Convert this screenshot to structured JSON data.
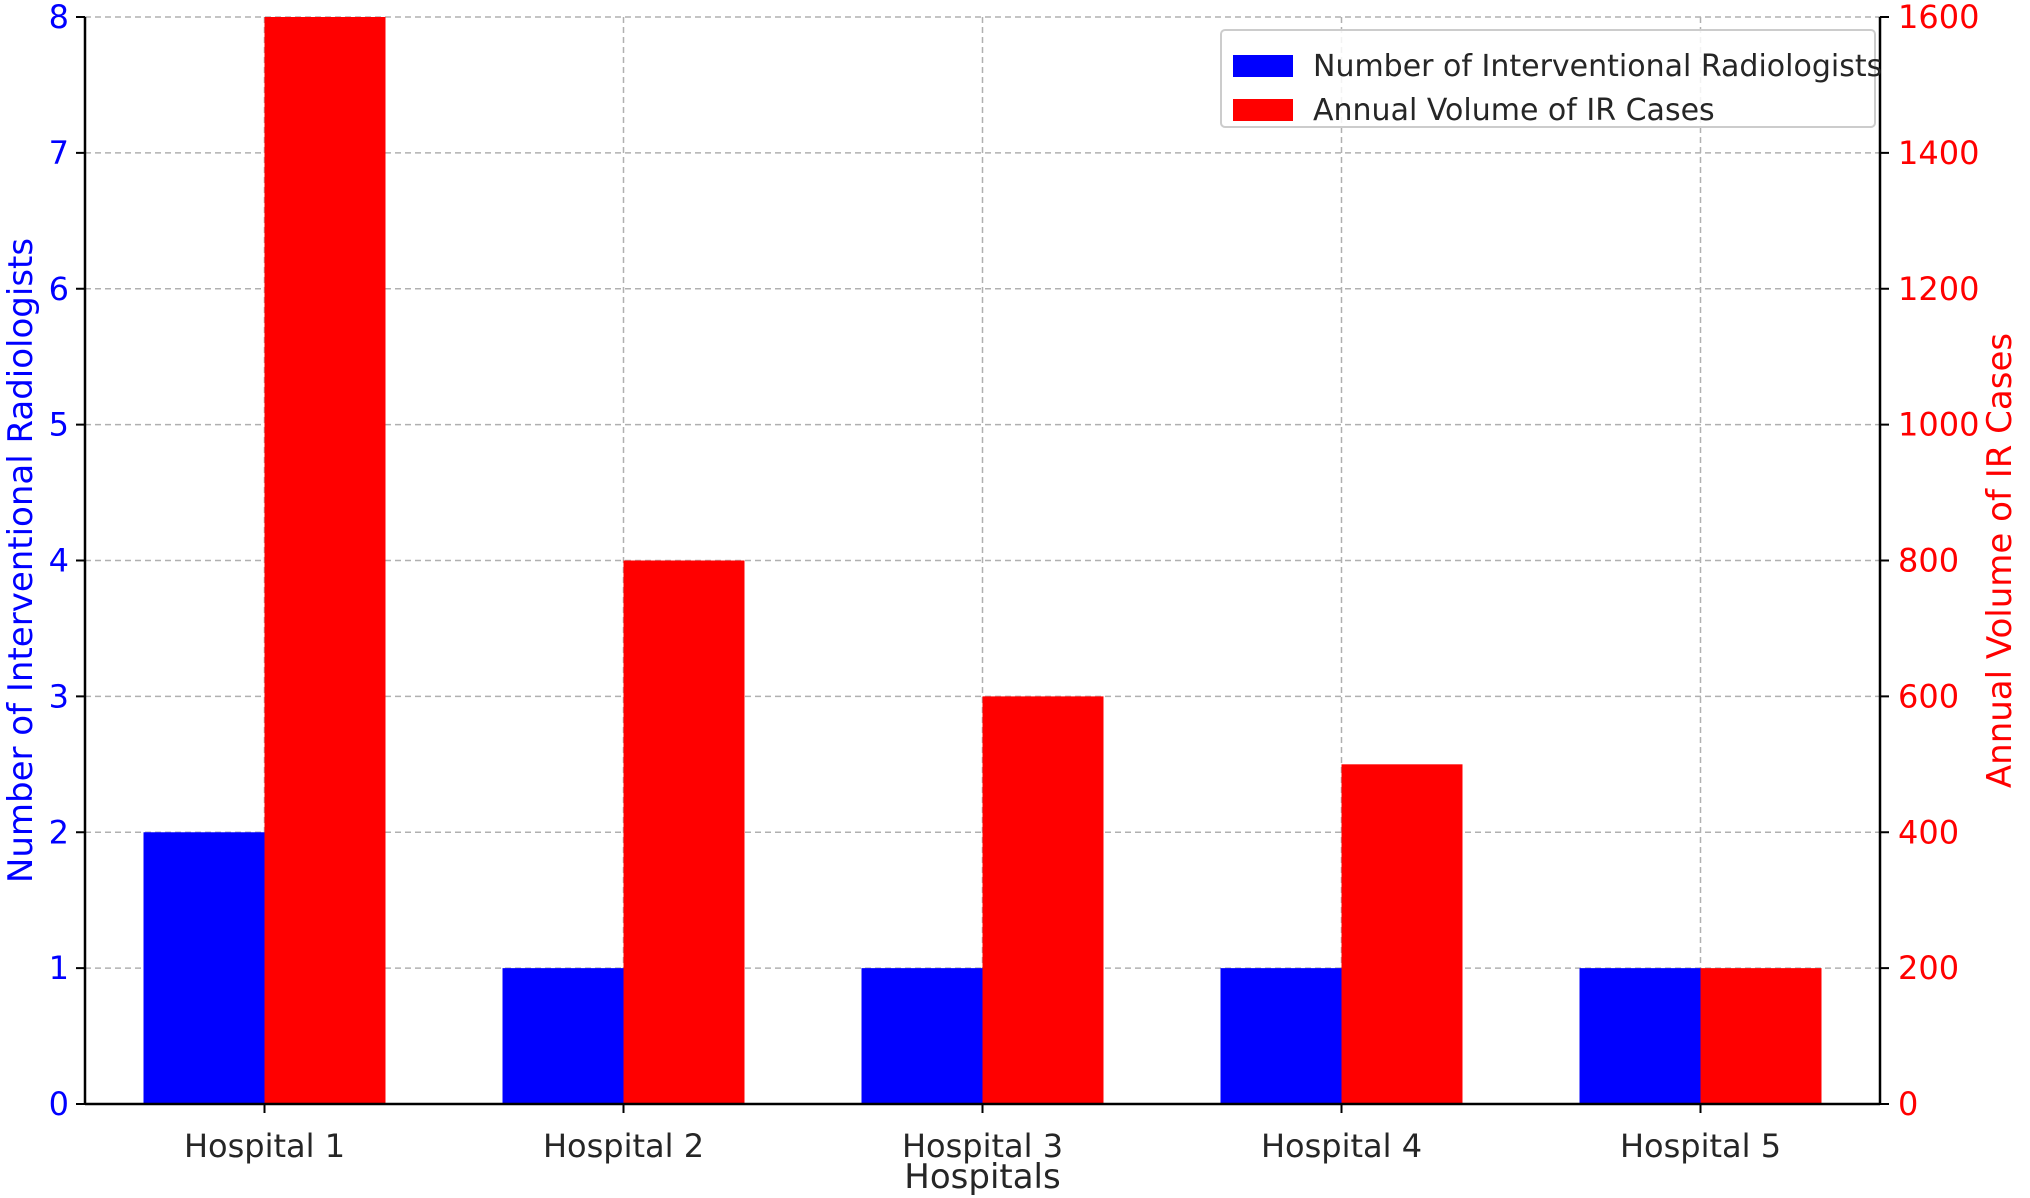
{
  "chart_data": {
    "type": "bar",
    "categories": [
      "Hospital 1",
      "Hospital 2",
      "Hospital 3",
      "Hospital 4",
      "Hospital 5"
    ],
    "xlabel": "Hospitals",
    "grid": true,
    "legend_position": "top-right",
    "series": [
      {
        "name": "Number of Interventional Radiologists",
        "axis": "left",
        "color": "#0000ff",
        "values": [
          2,
          1,
          1,
          1,
          1
        ]
      },
      {
        "name": "Annual Volume of IR Cases",
        "axis": "right",
        "color": "#ff0000",
        "values": [
          1600,
          800,
          600,
          500,
          200
        ]
      }
    ],
    "y_left": {
      "label": "Number of Interventional Radiologists",
      "color": "#0000ff",
      "ylim": [
        0,
        8
      ],
      "ticks": [
        "0",
        "1",
        "2",
        "3",
        "4",
        "5",
        "6",
        "7",
        "8"
      ]
    },
    "y_right": {
      "label": "Annual Volume of IR Cases",
      "color": "#ff0000",
      "ylim": [
        0,
        1600
      ],
      "ticks": [
        "0",
        "200",
        "400",
        "600",
        "800",
        "1000",
        "1200",
        "1400",
        "1600"
      ]
    }
  }
}
